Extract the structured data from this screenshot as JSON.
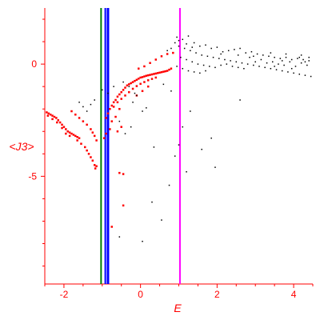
{
  "chart_data": {
    "type": "scatter",
    "xlabel": "E",
    "ylabel": "<J3>",
    "xlim": [
      -2.5,
      4.5
    ],
    "ylim": [
      -9.8,
      2.5
    ],
    "x_ticks": [
      -2,
      0,
      2,
      4
    ],
    "y_ticks": [
      -5,
      0
    ],
    "grid": false,
    "axis_color": "#ff0000",
    "series": [
      {
        "color": "#ff0000",
        "marker_size": 2.5,
        "points": [
          [
            -2.45,
            -2.15
          ],
          [
            -2.4,
            -2.2
          ],
          [
            -2.35,
            -2.25
          ],
          [
            -2.3,
            -2.3
          ],
          [
            -2.25,
            -2.35
          ],
          [
            -2.2,
            -2.4
          ],
          [
            -2.15,
            -2.5
          ],
          [
            -2.1,
            -2.6
          ],
          [
            -2.05,
            -2.7
          ],
          [
            -2.0,
            -2.8
          ],
          [
            -1.95,
            -2.9
          ],
          [
            -1.9,
            -3.0
          ],
          [
            -1.85,
            -3.05
          ],
          [
            -1.8,
            -3.1
          ],
          [
            -1.75,
            -3.15
          ],
          [
            -1.7,
            -3.2
          ],
          [
            -1.65,
            -3.25
          ],
          [
            -1.6,
            -3.3
          ],
          [
            -2.42,
            -2.3
          ],
          [
            -2.3,
            -2.45
          ],
          [
            -2.18,
            -2.6
          ],
          [
            -2.05,
            -2.85
          ],
          [
            -1.95,
            -3.1
          ],
          [
            -1.85,
            -3.2
          ],
          [
            -1.65,
            -3.4
          ],
          [
            -1.55,
            -3.55
          ],
          [
            -1.45,
            -3.7
          ],
          [
            -1.4,
            -3.85
          ],
          [
            -1.35,
            -4.0
          ],
          [
            -1.3,
            -4.15
          ],
          [
            -1.25,
            -4.3
          ],
          [
            -1.2,
            -4.5
          ],
          [
            -1.18,
            -4.65
          ],
          [
            -1.15,
            -4.55
          ],
          [
            -1.8,
            -2.1
          ],
          [
            -1.7,
            -2.25
          ],
          [
            -1.6,
            -2.4
          ],
          [
            -1.5,
            -2.55
          ],
          [
            -1.4,
            -2.7
          ],
          [
            -1.3,
            -2.9
          ],
          [
            -1.25,
            -3.05
          ],
          [
            -1.2,
            -3.2
          ],
          [
            -1.15,
            -3.4
          ],
          [
            -0.9,
            -2.4
          ],
          [
            -0.85,
            -2.2
          ],
          [
            -0.8,
            -2.0
          ],
          [
            -0.75,
            -1.85
          ],
          [
            -0.7,
            -1.7
          ],
          [
            -0.65,
            -1.6
          ],
          [
            -0.6,
            -1.45
          ],
          [
            -0.55,
            -1.35
          ],
          [
            -0.5,
            -1.25
          ],
          [
            -0.45,
            -1.15
          ],
          [
            -0.4,
            -1.05
          ],
          [
            -0.35,
            -0.95
          ],
          [
            -0.3,
            -0.9
          ],
          [
            -0.25,
            -0.85
          ],
          [
            -0.2,
            -0.8
          ],
          [
            -0.15,
            -0.75
          ],
          [
            -0.1,
            -0.7
          ],
          [
            -0.05,
            -0.65
          ],
          [
            0.0,
            -0.6
          ],
          [
            0.05,
            -0.58
          ],
          [
            0.1,
            -0.55
          ],
          [
            0.15,
            -0.52
          ],
          [
            0.2,
            -0.5
          ],
          [
            0.25,
            -0.48
          ],
          [
            0.3,
            -0.46
          ],
          [
            0.35,
            -0.44
          ],
          [
            0.4,
            -0.42
          ],
          [
            0.45,
            -0.4
          ],
          [
            0.5,
            -0.38
          ],
          [
            0.55,
            -0.36
          ],
          [
            0.6,
            -0.34
          ],
          [
            0.65,
            -0.32
          ],
          [
            0.7,
            -0.3
          ],
          [
            0.75,
            -0.25
          ],
          [
            0.8,
            -0.2
          ],
          [
            -0.7,
            -1.9
          ],
          [
            -0.6,
            -1.7
          ],
          [
            -0.5,
            -1.55
          ],
          [
            -0.4,
            -1.4
          ],
          [
            -0.3,
            -1.25
          ],
          [
            -0.2,
            -1.1
          ],
          [
            -0.1,
            -0.98
          ],
          [
            0.0,
            -0.88
          ],
          [
            0.1,
            -0.8
          ],
          [
            0.2,
            -0.72
          ],
          [
            0.3,
            -0.66
          ],
          [
            0.4,
            -0.6
          ],
          [
            -0.05,
            -0.2
          ],
          [
            0.1,
            -0.1
          ],
          [
            0.25,
            0.05
          ],
          [
            0.4,
            0.2
          ],
          [
            0.55,
            0.35
          ],
          [
            0.7,
            0.45
          ],
          [
            0.85,
            0.5
          ],
          [
            -0.1,
            -1.4
          ],
          [
            0.05,
            -1.2
          ],
          [
            0.2,
            -1.0
          ],
          [
            -0.65,
            -2.35
          ],
          [
            -0.55,
            -2.0
          ],
          [
            -0.5,
            -2.8
          ],
          [
            -0.8,
            -2.9
          ],
          [
            -0.9,
            -3.1
          ],
          [
            -0.95,
            -3.3
          ],
          [
            -0.75,
            -2.55
          ],
          [
            -0.6,
            -3.0
          ],
          [
            -0.55,
            -4.85
          ],
          [
            -0.45,
            -4.9
          ],
          [
            -0.45,
            -6.3
          ],
          [
            -0.75,
            -7.25
          ]
        ]
      },
      {
        "color": "#000000",
        "marker_size": 1.5,
        "points": [
          [
            -1.0,
            -1.15
          ],
          [
            -0.85,
            -1.3
          ],
          [
            -0.55,
            -2.55
          ],
          [
            -0.4,
            -3.1
          ],
          [
            -0.25,
            -2.8
          ],
          [
            -0.2,
            -1.7
          ],
          [
            -0.1,
            -1.4
          ],
          [
            0.05,
            -2.1
          ],
          [
            0.15,
            -1.95
          ],
          [
            0.35,
            -3.7
          ],
          [
            0.3,
            -6.15
          ],
          [
            0.55,
            -6.95
          ],
          [
            0.75,
            -5.4
          ],
          [
            1.2,
            -4.8
          ],
          [
            1.6,
            -3.8
          ],
          [
            1.85,
            -3.3
          ],
          [
            1.95,
            -4.6
          ],
          [
            2.6,
            -1.6
          ],
          [
            0.05,
            -7.9
          ],
          [
            -0.55,
            -7.7
          ],
          [
            1.3,
            -2.1
          ],
          [
            1.1,
            -2.8
          ],
          [
            1.0,
            -3.6
          ],
          [
            0.9,
            -4.1
          ],
          [
            -1.6,
            -1.7
          ],
          [
            -1.5,
            -1.9
          ],
          [
            -1.4,
            -2.1
          ],
          [
            -1.3,
            -1.8
          ],
          [
            -1.2,
            -1.6
          ],
          [
            0.95,
            1.2
          ],
          [
            1.1,
            1.1
          ],
          [
            1.25,
            1.25
          ],
          [
            1.4,
            0.95
          ],
          [
            1.55,
            0.8
          ],
          [
            1.7,
            0.85
          ],
          [
            1.85,
            0.7
          ],
          [
            2.0,
            0.75
          ],
          [
            2.15,
            0.55
          ],
          [
            2.3,
            0.6
          ],
          [
            2.45,
            0.65
          ],
          [
            2.6,
            0.7
          ],
          [
            2.75,
            0.5
          ],
          [
            2.9,
            0.55
          ],
          [
            3.05,
            0.45
          ],
          [
            3.2,
            0.4
          ],
          [
            3.35,
            0.35
          ],
          [
            3.5,
            0.3
          ],
          [
            3.65,
            0.25
          ],
          [
            3.8,
            0.3
          ],
          [
            3.95,
            0.2
          ],
          [
            4.1,
            0.25
          ],
          [
            4.25,
            0.2
          ],
          [
            4.4,
            0.15
          ],
          [
            1.0,
            0.8
          ],
          [
            1.15,
            0.7
          ],
          [
            1.3,
            0.6
          ],
          [
            1.45,
            0.5
          ],
          [
            1.6,
            0.4
          ],
          [
            1.75,
            0.35
          ],
          [
            1.9,
            0.3
          ],
          [
            2.05,
            0.25
          ],
          [
            2.2,
            0.2
          ],
          [
            2.35,
            0.15
          ],
          [
            2.5,
            0.1
          ],
          [
            2.65,
            0.05
          ],
          [
            2.8,
            0.0
          ],
          [
            2.95,
            -0.05
          ],
          [
            3.1,
            -0.1
          ],
          [
            3.25,
            -0.15
          ],
          [
            3.4,
            -0.2
          ],
          [
            3.55,
            -0.25
          ],
          [
            3.7,
            -0.3
          ],
          [
            3.85,
            -0.35
          ],
          [
            4.0,
            -0.4
          ],
          [
            4.15,
            -0.45
          ],
          [
            4.3,
            -0.5
          ],
          [
            4.45,
            -0.55
          ],
          [
            1.05,
            0.3
          ],
          [
            1.2,
            0.2
          ],
          [
            1.35,
            0.1
          ],
          [
            1.5,
            0.0
          ],
          [
            1.65,
            -0.05
          ],
          [
            1.8,
            -0.1
          ],
          [
            1.95,
            -0.15
          ],
          [
            2.1,
            -0.05
          ],
          [
            2.25,
            0.0
          ],
          [
            2.4,
            -0.1
          ],
          [
            2.55,
            -0.15
          ],
          [
            2.7,
            -0.2
          ],
          [
            2.85,
            0.3
          ],
          [
            3.0,
            0.1
          ],
          [
            3.15,
            0.2
          ],
          [
            3.3,
            0.05
          ],
          [
            3.45,
            0.1
          ],
          [
            3.6,
            0.0
          ],
          [
            3.75,
            -0.05
          ],
          [
            3.9,
            0.1
          ],
          [
            4.05,
            -0.1
          ],
          [
            4.2,
            0.05
          ],
          [
            4.35,
            -0.05
          ],
          [
            0.95,
            -0.1
          ],
          [
            1.1,
            -0.2
          ],
          [
            1.25,
            -0.3
          ],
          [
            1.4,
            -0.35
          ],
          [
            1.55,
            -0.4
          ],
          [
            1.7,
            -0.3
          ],
          [
            0.7,
            0.6
          ],
          [
            0.8,
            0.7
          ],
          [
            0.9,
            0.95
          ],
          [
            1.0,
            1.05
          ],
          [
            1.2,
            0.9
          ],
          [
            1.35,
            0.75
          ],
          [
            2.1,
            0.45
          ],
          [
            2.55,
            0.4
          ],
          [
            2.95,
            0.35
          ],
          [
            3.4,
            0.5
          ],
          [
            3.8,
            0.45
          ],
          [
            4.2,
            0.4
          ],
          [
            4.4,
            0.3
          ],
          [
            4.3,
            0.1
          ],
          [
            4.15,
            0.3
          ],
          [
            3.95,
            -0.2
          ],
          [
            3.7,
            0.15
          ],
          [
            3.5,
            -0.1
          ],
          [
            -0.7,
            -1.0
          ],
          [
            -0.45,
            -0.8
          ],
          [
            -0.3,
            -1.0
          ],
          [
            -0.15,
            -1.3
          ],
          [
            0.6,
            -0.9
          ],
          [
            0.8,
            -1.2
          ]
        ]
      }
    ],
    "vertical_lines": [
      {
        "x": -1.03,
        "color": "#008000",
        "width": 2
      },
      {
        "x": -0.92,
        "color": "#0000ff",
        "width": 2
      },
      {
        "x": -0.85,
        "color": "#0000ff",
        "width": 3
      },
      {
        "x": 1.03,
        "color": "#ff00ff",
        "width": 2
      }
    ]
  }
}
